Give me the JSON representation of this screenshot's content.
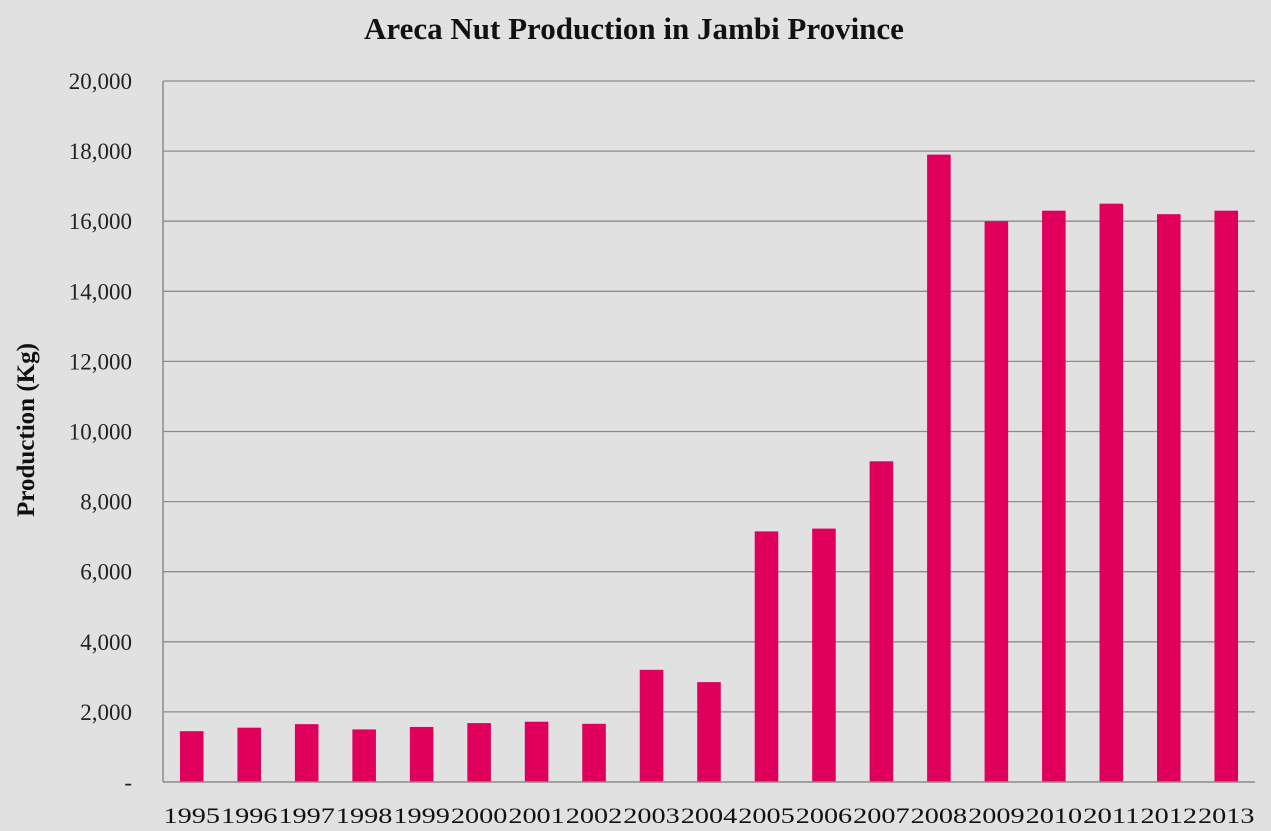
{
  "chart_data": {
    "type": "bar",
    "title": "Areca Nut Production in Jambi Province",
    "xlabel": "",
    "ylabel": "Production (Kg)",
    "ylim": [
      0,
      20000
    ],
    "yticks": [
      0,
      2000,
      4000,
      6000,
      8000,
      10000,
      12000,
      14000,
      16000,
      18000,
      20000
    ],
    "ytick_labels": [
      "-",
      "2,000",
      "4,000",
      "6,000",
      "8,000",
      "10,000",
      "12,000",
      "14,000",
      "16,000",
      "18,000",
      "20,000"
    ],
    "grid": true,
    "bar_color": "#e0005c",
    "categories": [
      "1995",
      "1996",
      "1997",
      "1998",
      "1999",
      "2000",
      "2001",
      "2002",
      "2003",
      "2004",
      "2005",
      "2006",
      "2007",
      "2008",
      "2009",
      "2010",
      "2011",
      "2012",
      "2013"
    ],
    "values": [
      1450,
      1550,
      1650,
      1500,
      1570,
      1680,
      1720,
      1660,
      3200,
      2850,
      7150,
      7230,
      9150,
      17900,
      16000,
      16300,
      16500,
      16200,
      16300
    ]
  }
}
